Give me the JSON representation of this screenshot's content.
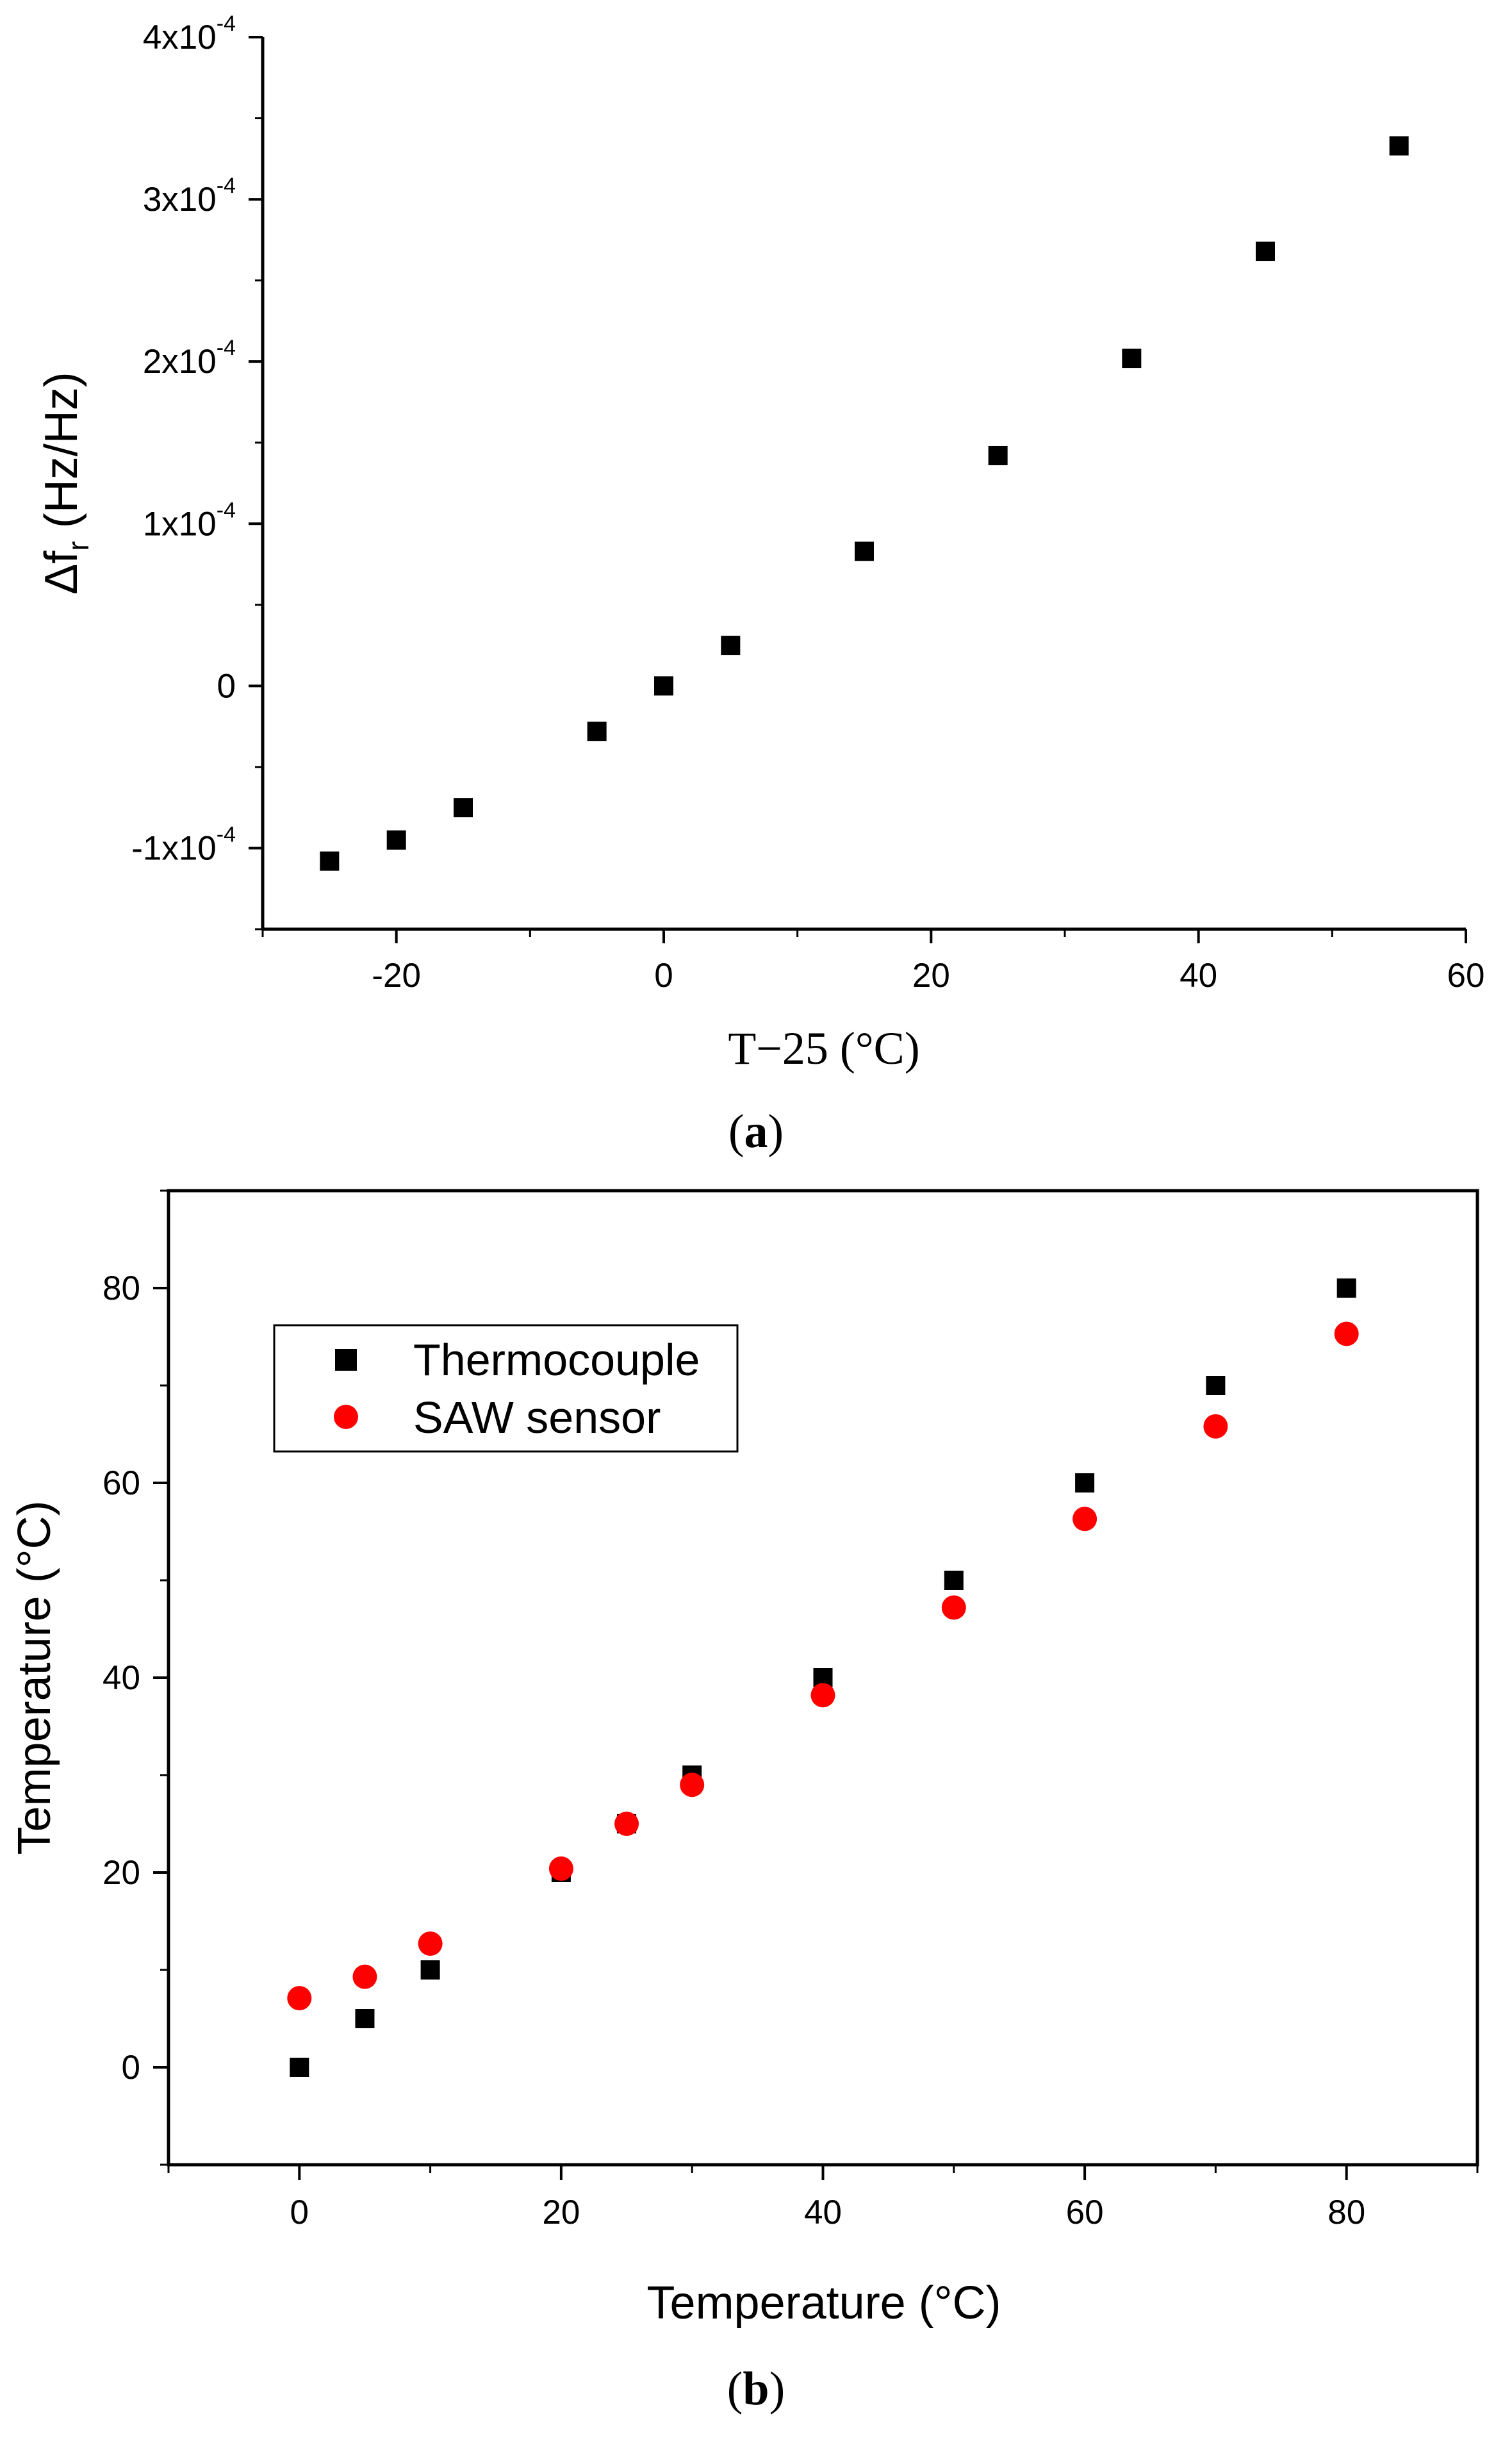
{
  "chart_data": [
    {
      "type": "scatter",
      "panel_label": "a",
      "xlabel": "T−25 (°C)",
      "ylabel": "Δf",
      "ylabel_sub": "r",
      "ylabel_unit": " (Hz/Hz)",
      "xlim": [
        -30,
        60
      ],
      "ylim": [
        -0.00015,
        0.0004
      ],
      "x_ticks": [
        {
          "value": -20,
          "label": "-20"
        },
        {
          "value": 0,
          "label": "0"
        },
        {
          "value": 20,
          "label": "20"
        },
        {
          "value": 40,
          "label": "40"
        },
        {
          "value": 60,
          "label": "60"
        }
      ],
      "y_ticks": [
        {
          "value": -0.0001,
          "mantissa": "-1x10",
          "exp": "-4"
        },
        {
          "value": 0,
          "mantissa": "0",
          "exp": ""
        },
        {
          "value": 0.0001,
          "mantissa": "1x10",
          "exp": "-4"
        },
        {
          "value": 0.0002,
          "mantissa": "2x10",
          "exp": "-4"
        },
        {
          "value": 0.0003,
          "mantissa": "3x10",
          "exp": "-4"
        },
        {
          "value": 0.0004,
          "mantissa": "4x10",
          "exp": "-4"
        }
      ],
      "grid": false,
      "series": [
        {
          "marker": "square",
          "color": "#000000",
          "points": [
            {
              "x": -25,
              "y": -0.000108
            },
            {
              "x": -20,
              "y": -9.5e-05
            },
            {
              "x": -15,
              "y": -7.5e-05
            },
            {
              "x": -5,
              "y": -2.8e-05
            },
            {
              "x": 0,
              "y": 0.0
            },
            {
              "x": 5,
              "y": 2.5e-05
            },
            {
              "x": 15,
              "y": 8.3e-05
            },
            {
              "x": 25,
              "y": 0.000142
            },
            {
              "x": 35,
              "y": 0.000202
            },
            {
              "x": 45,
              "y": 0.000268
            },
            {
              "x": 55,
              "y": 0.000333
            }
          ]
        }
      ]
    },
    {
      "type": "scatter",
      "panel_label": "b",
      "xlabel": "Temperature (°C)",
      "ylabel": "Temperature (°C)",
      "xlim": [
        -10,
        90
      ],
      "ylim": [
        -10,
        90
      ],
      "x_ticks": [
        0,
        20,
        40,
        60,
        80
      ],
      "y_ticks": [
        0,
        20,
        40,
        60,
        80
      ],
      "grid": false,
      "legend_position": "top-left",
      "series": [
        {
          "name": "Thermocouple",
          "marker": "square",
          "color": "#000000",
          "points": [
            {
              "x": 0,
              "y": 0
            },
            {
              "x": 5,
              "y": 5
            },
            {
              "x": 10,
              "y": 10
            },
            {
              "x": 20,
              "y": 20
            },
            {
              "x": 25,
              "y": 25
            },
            {
              "x": 30,
              "y": 30
            },
            {
              "x": 40,
              "y": 40
            },
            {
              "x": 50,
              "y": 50
            },
            {
              "x": 60,
              "y": 60
            },
            {
              "x": 70,
              "y": 70
            },
            {
              "x": 80,
              "y": 80
            }
          ]
        },
        {
          "name": "SAW sensor",
          "marker": "circle",
          "color": "#ff0000",
          "points": [
            {
              "x": 0,
              "y": 7.1
            },
            {
              "x": 5,
              "y": 9.3
            },
            {
              "x": 10,
              "y": 12.7
            },
            {
              "x": 20,
              "y": 20.4
            },
            {
              "x": 25,
              "y": 25.0
            },
            {
              "x": 30,
              "y": 29.0
            },
            {
              "x": 40,
              "y": 38.2
            },
            {
              "x": 50,
              "y": 47.2
            },
            {
              "x": 60,
              "y": 56.3
            },
            {
              "x": 70,
              "y": 65.8
            },
            {
              "x": 80,
              "y": 75.3
            }
          ]
        }
      ]
    }
  ]
}
